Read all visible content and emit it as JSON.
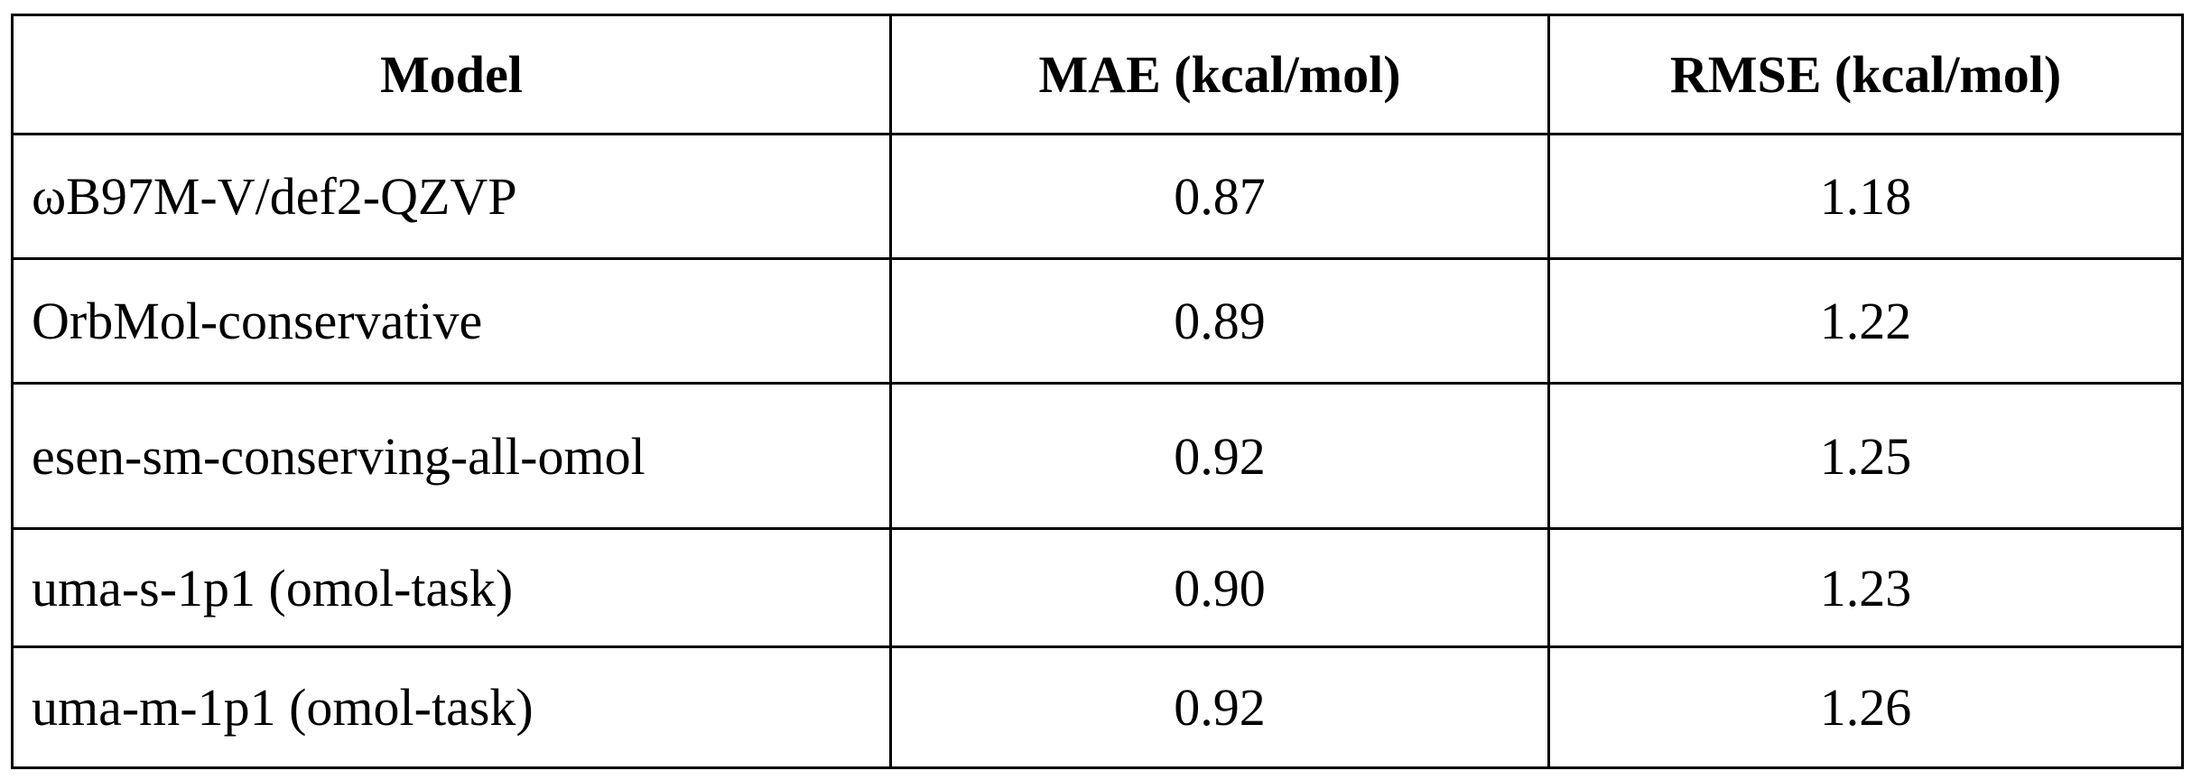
{
  "table": {
    "header": [
      "Model",
      "MAE (kcal/mol)",
      "RMSE (kcal/mol)"
    ],
    "rows": [
      [
        "ωB97M-V/def2-QZVP",
        "0.87",
        "1.18"
      ],
      [
        "OrbMol-conservative",
        "0.89",
        "1.22"
      ],
      [
        "esen-sm-conserving-all-omol",
        "0.92",
        "1.25"
      ],
      [
        "uma-s-1p1 (omol-task)",
        "0.90",
        "1.23"
      ],
      [
        "uma-m-1p1 (omol-task)",
        "0.92",
        "1.26"
      ]
    ]
  }
}
